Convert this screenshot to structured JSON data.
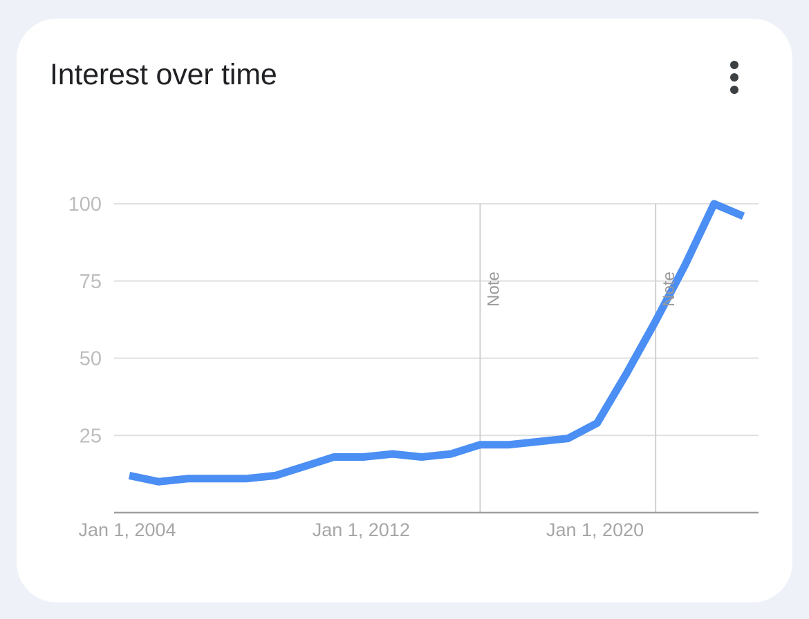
{
  "card": {
    "title": "Interest over time",
    "menu_icon": "more-vert-icon"
  },
  "colors": {
    "line": "#4b8ef4",
    "grid": "#e0e0e0",
    "axis": "#9e9e9e",
    "note_line": "#d0d0d0"
  },
  "chart_data": {
    "type": "line",
    "title": "Interest over time",
    "xlabel": "",
    "ylabel": "",
    "ylim": [
      0,
      100
    ],
    "y_ticks": [
      25,
      50,
      75,
      100
    ],
    "x_range": [
      "2004-01-01",
      "2025-01-01"
    ],
    "x_tick_labels": [
      {
        "label": "Jan 1, 2004",
        "date": "2004-01-01"
      },
      {
        "label": "Jan 1, 2012",
        "date": "2012-01-01"
      },
      {
        "label": "Jan 1, 2020",
        "date": "2020-01-01"
      }
    ],
    "grid": true,
    "legend": "none",
    "annotations": [
      {
        "text": "Note",
        "date": "2016-01-01"
      },
      {
        "text": "Note",
        "date": "2022-01-01"
      }
    ],
    "series": [
      {
        "x": [
          "2004-01-01",
          "2005-01-01",
          "2006-01-01",
          "2007-01-01",
          "2008-01-01",
          "2009-01-01",
          "2010-01-01",
          "2011-01-01",
          "2012-01-01",
          "2013-01-01",
          "2014-01-01",
          "2015-01-01",
          "2016-01-01",
          "2017-01-01",
          "2018-01-01",
          "2019-01-01",
          "2020-01-01",
          "2021-01-01",
          "2022-01-01",
          "2023-01-01",
          "2024-01-01",
          "2025-01-01"
        ],
        "values": [
          12,
          10,
          11,
          11,
          11,
          12,
          15,
          18,
          18,
          19,
          18,
          19,
          22,
          22,
          23,
          24,
          29,
          45,
          62,
          80,
          100,
          96
        ]
      }
    ]
  }
}
